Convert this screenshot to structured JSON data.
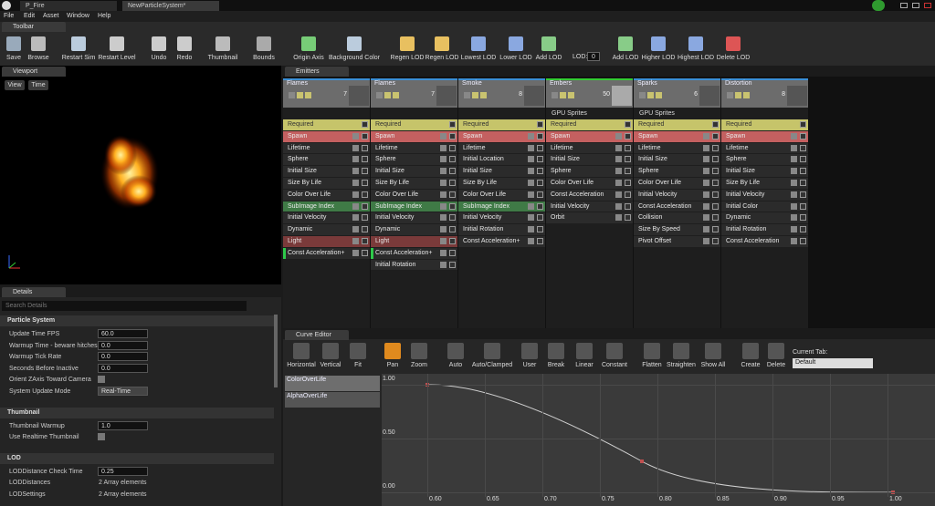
{
  "window": {
    "tabs": [
      "P_Fire",
      "NewParticleSystem*"
    ]
  },
  "menu": [
    "File",
    "Edit",
    "Asset",
    "Window",
    "Help"
  ],
  "toolbar": {
    "tab": "Toolbar",
    "buttons": [
      "Save",
      "Browse",
      "Restart Sim",
      "Restart Level",
      "Undo",
      "Redo",
      "Thumbnail",
      "Bounds",
      "Origin Axis",
      "Background Color",
      "Regen LOD",
      "Regen LOD",
      "Lowest LOD",
      "Lower LOD",
      "Add LOD",
      "Add LOD",
      "Higher LOD",
      "Highest LOD",
      "Delete LOD"
    ],
    "lod_label": "LOD:",
    "lod_value": "0"
  },
  "viewport": {
    "tab": "Viewport",
    "buttons": [
      "View",
      "Time"
    ]
  },
  "emitters": {
    "tab": "Emitters",
    "columns": [
      {
        "name": "Flames",
        "count": "7",
        "modules": [
          {
            "label": "Required",
            "color": "#c6c46a"
          },
          {
            "label": "Spawn",
            "color": "#c46060"
          },
          {
            "label": "Lifetime"
          },
          {
            "label": "Sphere"
          },
          {
            "label": "Initial Size"
          },
          {
            "label": "Size By Life"
          },
          {
            "label": "Color Over Life"
          },
          {
            "label": "SubImage Index",
            "color": "#3f7a46"
          },
          {
            "label": "Initial Velocity"
          },
          {
            "label": "Dynamic"
          },
          {
            "label": "Light",
            "color": "#7a3a3a"
          },
          {
            "label": "Const Acceleration+",
            "color": "#2a2a2a",
            "edge": "#2ec94a"
          }
        ]
      },
      {
        "name": "Flames",
        "count": "7",
        "modules": [
          {
            "label": "Required",
            "color": "#c6c46a"
          },
          {
            "label": "Spawn",
            "color": "#c46060"
          },
          {
            "label": "Lifetime"
          },
          {
            "label": "Sphere"
          },
          {
            "label": "Initial Size"
          },
          {
            "label": "Size By Life"
          },
          {
            "label": "Color Over Life"
          },
          {
            "label": "SubImage Index",
            "color": "#3f7a46"
          },
          {
            "label": "Initial Velocity"
          },
          {
            "label": "Dynamic"
          },
          {
            "label": "Light",
            "color": "#7a3a3a"
          },
          {
            "label": "Const Acceleration+",
            "color": "#2a2a2a",
            "edge": "#2ec94a"
          },
          {
            "label": "Initial Rotation"
          }
        ]
      },
      {
        "name": "Smoke",
        "count": "8",
        "modules": [
          {
            "label": "Required",
            "color": "#c6c46a"
          },
          {
            "label": "Spawn",
            "color": "#c46060"
          },
          {
            "label": "Lifetime"
          },
          {
            "label": "Initial Location"
          },
          {
            "label": "Initial Size"
          },
          {
            "label": "Size By Life"
          },
          {
            "label": "Color Over Life"
          },
          {
            "label": "SubImage Index",
            "color": "#3f7a46"
          },
          {
            "label": "Initial Velocity"
          },
          {
            "label": "Initial Rotation"
          },
          {
            "label": "Const Acceleration+"
          }
        ]
      },
      {
        "name": "Embers",
        "count": "50",
        "subtitle": "GPU Sprites",
        "modules": [
          {
            "label": "Required",
            "color": "#c6c46a"
          },
          {
            "label": "Spawn",
            "color": "#c46060"
          },
          {
            "label": "Lifetime"
          },
          {
            "label": "Initial Size"
          },
          {
            "label": "Sphere"
          },
          {
            "label": "Color Over Life"
          },
          {
            "label": "Const Acceleration"
          },
          {
            "label": "Initial Velocity"
          },
          {
            "label": "Orbit"
          }
        ]
      },
      {
        "name": "Sparks",
        "count": "6",
        "subtitle": "GPU Sprites",
        "modules": [
          {
            "label": "Required",
            "color": "#c6c46a"
          },
          {
            "label": "Spawn",
            "color": "#c46060"
          },
          {
            "label": "Lifetime"
          },
          {
            "label": "Initial Size"
          },
          {
            "label": "Sphere"
          },
          {
            "label": "Color Over Life"
          },
          {
            "label": "Initial Velocity"
          },
          {
            "label": "Const Acceleration"
          },
          {
            "label": "Collision"
          },
          {
            "label": "Size By Speed"
          },
          {
            "label": "Pivot Offset"
          }
        ]
      },
      {
        "name": "Distortion",
        "count": "8",
        "modules": [
          {
            "label": "Required",
            "color": "#c6c46a"
          },
          {
            "label": "Spawn",
            "color": "#c46060"
          },
          {
            "label": "Lifetime"
          },
          {
            "label": "Sphere"
          },
          {
            "label": "Initial Size"
          },
          {
            "label": "Size By Life"
          },
          {
            "label": "Initial Velocity"
          },
          {
            "label": "Initial Color"
          },
          {
            "label": "Dynamic"
          },
          {
            "label": "Initial Rotation"
          },
          {
            "label": "Const Acceleration"
          }
        ]
      }
    ]
  },
  "details": {
    "tab": "Details",
    "search": "Search Details",
    "sections": [
      {
        "title": "Particle System",
        "rows": [
          {
            "label": "Update Time FPS",
            "value": "60.0"
          },
          {
            "label": "Warmup Time - beware hitches!",
            "value": "0.0"
          },
          {
            "label": "Warmup Tick Rate",
            "value": "0.0"
          },
          {
            "label": "Seconds Before Inactive",
            "value": "0.0"
          },
          {
            "label": "Orient ZAxis Toward Camera",
            "checkbox": false
          },
          {
            "label": "System Update Mode",
            "value": "Real-Time",
            "dropdown": true
          }
        ]
      },
      {
        "title": "Thumbnail",
        "rows": [
          {
            "label": "Thumbnail Warmup",
            "value": "1.0"
          },
          {
            "label": "Use Realtime Thumbnail",
            "checkbox": false
          }
        ]
      },
      {
        "title": "LOD",
        "rows": [
          {
            "label": "LODDistance Check Time",
            "value": "0.25"
          },
          {
            "label": "LODDistances",
            "text": "2 Array elements"
          },
          {
            "label": "LODSettings",
            "text": "2 Array elements"
          }
        ]
      }
    ]
  },
  "curve_editor": {
    "tab": "Curve Editor",
    "buttons": [
      "Horizontal",
      "Vertical",
      "Fit",
      "Pan",
      "Zoom",
      "Auto",
      "Auto/Clamped",
      "User",
      "Break",
      "Linear",
      "Constant",
      "Flatten",
      "Straighten",
      "Show All",
      "Create",
      "Delete"
    ],
    "current_tab_label": "Current Tab:",
    "current_tab": "Default",
    "tracks": [
      "ColorOverLife",
      "AlphaOverLife"
    ],
    "yticks": [
      "1.00",
      "0.50",
      "0.00"
    ],
    "xticks": [
      "0.60",
      "0.65",
      "0.70",
      "0.75",
      "0.80",
      "0.85",
      "0.90",
      "0.95",
      "1.00"
    ]
  }
}
